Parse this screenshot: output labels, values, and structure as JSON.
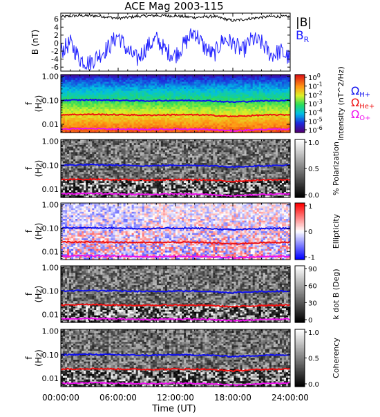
{
  "chart_data": {
    "type": "heatmap",
    "title": "ACE Mag 2003-115",
    "xlabel": "Time (UT)",
    "x_ticks": [
      "00:00:00",
      "06:00:00",
      "12:00:00",
      "18:00:00",
      "24:00:00"
    ],
    "x_range_hours": [
      0,
      24
    ],
    "panels": [
      {
        "id": "b",
        "type": "line",
        "ylabel": "B (nT)",
        "y_ticks": [
          "6",
          "4",
          "2",
          "0",
          "-2",
          "-4",
          "-6"
        ],
        "ylim": [
          -7,
          7.5
        ],
        "legend": [
          "|B|",
          "BR"
        ],
        "series": [
          {
            "name": "|B|",
            "color": "#000000",
            "x": [
              0,
              2,
              4,
              6,
              8,
              10,
              12,
              14,
              16,
              18,
              20,
              22,
              24
            ],
            "y": [
              6.6,
              6.9,
              6.8,
              6.2,
              6.7,
              6.9,
              6.8,
              6.4,
              6.7,
              5.6,
              6.2,
              6.7,
              6.6
            ]
          },
          {
            "name": "BR",
            "color": "#2020ff",
            "x": [
              0,
              1,
              2,
              3,
              4,
              5,
              6,
              7,
              8,
              9,
              10,
              11,
              12,
              13,
              14,
              15,
              16,
              17,
              18,
              19,
              20,
              21,
              22,
              23,
              24
            ],
            "y": [
              -2,
              0,
              -4,
              -5,
              -3,
              -1,
              2,
              -2,
              -4,
              -1,
              1,
              -2,
              -3,
              0,
              3,
              -1,
              -3,
              1,
              0,
              -2,
              1,
              0,
              -3,
              -2,
              -4
            ]
          }
        ]
      },
      {
        "id": "intensity",
        "type": "heatmap",
        "ylabel": "f (Hz)",
        "y_ticks": [
          "1.00",
          "0.10",
          "0.01"
        ],
        "colorbar_label": "Intensity (nT^2/Hz)",
        "colorbar_ticks": [
          "10^0",
          "10^-1",
          "10^-2",
          "10^-3",
          "10^-4",
          "10^-5",
          "10^-6"
        ],
        "colormap": "rainbow"
      },
      {
        "id": "polarization",
        "type": "heatmap",
        "ylabel": "f (Hz)",
        "y_ticks": [
          "1.00",
          "0.10",
          "0.01"
        ],
        "colorbar_label": "% Polarization",
        "colorbar_ticks": [
          "1.0",
          "0.5",
          "0.0"
        ],
        "colormap": "gray"
      },
      {
        "id": "ellipticity",
        "type": "heatmap",
        "ylabel": "f (Hz)",
        "y_ticks": [
          "1.00",
          "0.10",
          "0.01"
        ],
        "colorbar_label": "Ellipticity",
        "colorbar_ticks": [
          "1",
          "0",
          "-1"
        ],
        "colormap": "blue-white-red"
      },
      {
        "id": "kdotb",
        "type": "heatmap",
        "ylabel": "f (Hz)",
        "y_ticks": [
          "1.00",
          "0.10",
          "0.01"
        ],
        "colorbar_label": "k dot B (Deg)",
        "colorbar_ticks": [
          "90",
          "60",
          "30",
          "0"
        ],
        "colormap": "gray"
      },
      {
        "id": "coherency",
        "type": "heatmap",
        "ylabel": "f (Hz)",
        "y_ticks": [
          "1.00",
          "0.10",
          "0.01"
        ],
        "colorbar_label": "Coherency",
        "colorbar_ticks": [
          "1.0",
          "0.5",
          "0.0"
        ],
        "colormap": "gray"
      }
    ],
    "gyrofrequency_series": [
      {
        "name": "ΩH+",
        "color": "#1010ee",
        "x": [
          0,
          3,
          6,
          9,
          12,
          15,
          18,
          21,
          24
        ],
        "y": [
          0.1,
          0.105,
          0.1,
          0.095,
          0.1,
          0.098,
          0.085,
          0.095,
          0.1
        ]
      },
      {
        "name": "ΩHe+",
        "color": "#ee1010",
        "x": [
          0,
          3,
          6,
          9,
          12,
          15,
          18,
          21,
          24
        ],
        "y": [
          0.025,
          0.026,
          0.025,
          0.024,
          0.025,
          0.0245,
          0.021,
          0.024,
          0.025
        ]
      },
      {
        "name": "ΩO+",
        "color": "#ee10ee",
        "x": [
          0,
          3,
          6,
          9,
          12,
          15,
          18,
          21,
          24
        ],
        "y": [
          0.0063,
          0.0066,
          0.0063,
          0.006,
          0.0063,
          0.0061,
          0.0053,
          0.006,
          0.0063
        ]
      }
    ],
    "legend_placement": "right of intensity panel"
  }
}
